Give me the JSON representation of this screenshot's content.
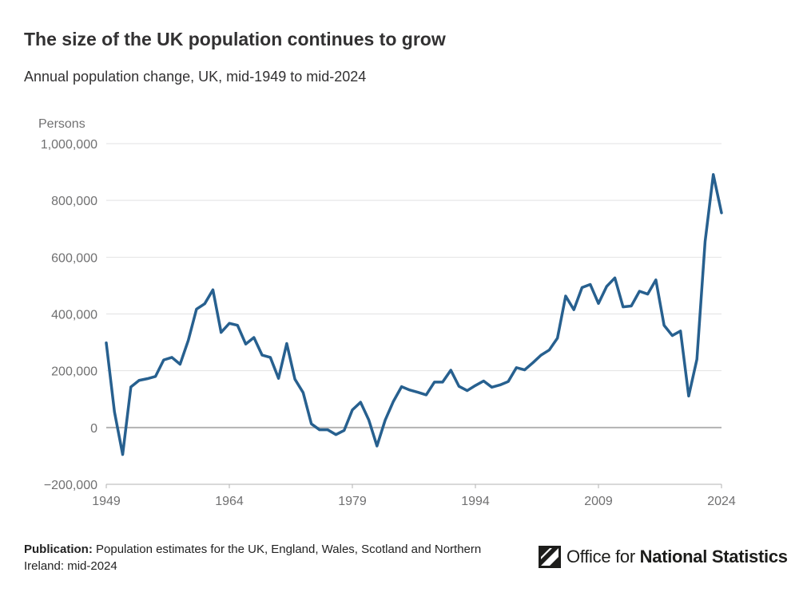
{
  "header": {
    "title": "The size of the UK population continues to grow",
    "subtitle": "Annual population change, UK, mid-1949 to mid-2024"
  },
  "chart_data": {
    "type": "line",
    "title": "The size of the UK population continues to grow",
    "subtitle": "Annual population change, UK, mid-1949 to mid-2024",
    "ylabel": "Persons",
    "xlabel": "",
    "ylim": [
      -200000,
      1000000
    ],
    "xlim": [
      1949,
      2024
    ],
    "grid": true,
    "color": "#27608f",
    "y_ticks": [
      {
        "value": 1000000,
        "label": "1,000,000"
      },
      {
        "value": 800000,
        "label": "800,000"
      },
      {
        "value": 600000,
        "label": "600,000"
      },
      {
        "value": 400000,
        "label": "400,000"
      },
      {
        "value": 200000,
        "label": "200,000"
      },
      {
        "value": 0,
        "label": "0"
      },
      {
        "value": -200000,
        "label": "−200,000"
      }
    ],
    "x_ticks": [
      {
        "value": 1949,
        "label": "1949"
      },
      {
        "value": 1964,
        "label": "1964"
      },
      {
        "value": 1979,
        "label": "1979"
      },
      {
        "value": 1994,
        "label": "1994"
      },
      {
        "value": 2009,
        "label": "2009"
      },
      {
        "value": 2024,
        "label": "2024"
      }
    ],
    "x": [
      1949,
      1950,
      1951,
      1952,
      1953,
      1954,
      1955,
      1956,
      1957,
      1958,
      1959,
      1960,
      1961,
      1962,
      1963,
      1964,
      1965,
      1966,
      1967,
      1968,
      1969,
      1970,
      1971,
      1972,
      1973,
      1974,
      1975,
      1976,
      1977,
      1978,
      1979,
      1980,
      1981,
      1982,
      1983,
      1984,
      1985,
      1986,
      1987,
      1988,
      1989,
      1990,
      1991,
      1992,
      1993,
      1994,
      1995,
      1996,
      1997,
      1998,
      1999,
      2000,
      2001,
      2002,
      2003,
      2004,
      2005,
      2006,
      2007,
      2008,
      2009,
      2010,
      2011,
      2012,
      2013,
      2014,
      2015,
      2016,
      2017,
      2018,
      2019,
      2020,
      2021,
      2022,
      2023,
      2024
    ],
    "series": [
      {
        "values": [
          298000,
          55000,
          -95000,
          143000,
          166000,
          172000,
          180000,
          238000,
          247000,
          223000,
          307000,
          417000,
          436000,
          485000,
          335000,
          367000,
          360000,
          294000,
          317000,
          255000,
          247000,
          173000,
          296000,
          170000,
          123000,
          13000,
          -8000,
          -8000,
          -25000,
          -10000,
          62000,
          89000,
          27000,
          -65000,
          26000,
          92000,
          144000,
          132000,
          124000,
          115000,
          160000,
          160000,
          202000,
          145000,
          130000,
          148000,
          164000,
          142000,
          150000,
          162000,
          211000,
          203000,
          228000,
          255000,
          273000,
          315000,
          463000,
          415000,
          493000,
          504000,
          437000,
          497000,
          527000,
          425000,
          428000,
          480000,
          470000,
          520000,
          360000,
          324000,
          340000,
          111000,
          240000,
          655000,
          891000,
          756000
        ]
      }
    ]
  },
  "footer": {
    "publication_label": "Publication:",
    "publication_text": "Population estimates for the UK, England, Wales, Scotland and Northern Ireland: mid-2024"
  },
  "logo": {
    "icon": "ons-logo-icon",
    "text_regular": "Office for ",
    "text_bold": "National Statistics"
  }
}
